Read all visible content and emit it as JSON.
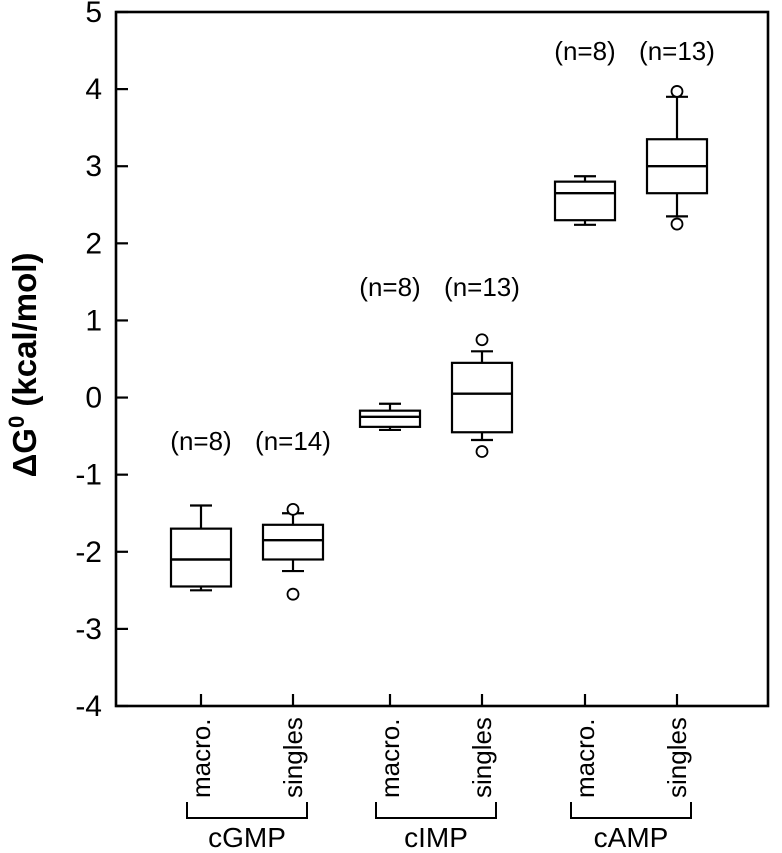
{
  "figure": {
    "background": "#ffffff",
    "ink_color": "#000000"
  },
  "chart_data": {
    "type": "box",
    "title": "",
    "ylabel": {
      "prefix": "ΔG",
      "superscript": "0",
      "suffix": " (kcal/mol)"
    },
    "ylim": [
      -4,
      5
    ],
    "yticks": [
      5,
      4,
      3,
      2,
      1,
      0,
      -1,
      -2,
      -3,
      -4
    ],
    "grid": false,
    "frame": true,
    "legend": "none",
    "groups": [
      {
        "label": "cGMP",
        "annotation_y": -0.68,
        "boxes": [
          {
            "condition": "macro.",
            "annotation": "(n=8)",
            "n": 8,
            "whisker_high": -1.4,
            "q3": -1.7,
            "median": -2.1,
            "q1": -2.45,
            "whisker_low": -2.5,
            "outliers": []
          },
          {
            "condition": "singles",
            "annotation": "(n=14)",
            "n": 14,
            "whisker_high": -1.5,
            "q3": -1.65,
            "median": -1.85,
            "q1": -2.1,
            "whisker_low": -2.25,
            "outliers": [
              -1.45,
              -2.55
            ]
          }
        ]
      },
      {
        "label": "cIMP",
        "annotation_y": 1.32,
        "boxes": [
          {
            "condition": "macro.",
            "annotation": "(n=8)",
            "n": 8,
            "whisker_high": -0.08,
            "q3": -0.17,
            "median": -0.25,
            "q1": -0.38,
            "whisker_low": -0.42,
            "outliers": []
          },
          {
            "condition": "singles",
            "annotation": "(n=13)",
            "n": 13,
            "whisker_high": 0.6,
            "q3": 0.45,
            "median": 0.05,
            "q1": -0.45,
            "whisker_low": -0.55,
            "outliers": [
              0.75,
              -0.7
            ]
          }
        ]
      },
      {
        "label": "cAMP",
        "annotation_y": 4.38,
        "boxes": [
          {
            "condition": "macro.",
            "annotation": "(n=8)",
            "n": 8,
            "whisker_high": 2.87,
            "q3": 2.8,
            "median": 2.65,
            "q1": 2.3,
            "whisker_low": 2.24,
            "outliers": []
          },
          {
            "condition": "singles",
            "annotation": "(n=13)",
            "n": 13,
            "whisker_high": 3.9,
            "q3": 3.35,
            "median": 3.0,
            "q1": 2.65,
            "whisker_low": 2.35,
            "outliers": [
              3.97,
              2.25
            ]
          }
        ]
      }
    ]
  }
}
